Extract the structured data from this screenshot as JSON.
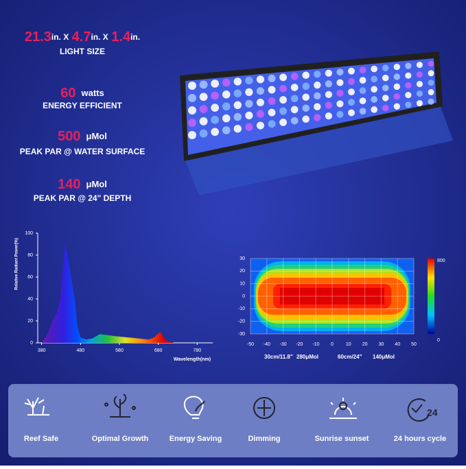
{
  "specs": [
    {
      "parts": [
        {
          "value": 21.3
        },
        {
          "unit": "in. X"
        },
        {
          "value": 4.7
        },
        {
          "unit": "in. X"
        },
        {
          "value": 1.4
        },
        {
          "unit": "in."
        }
      ],
      "label": "LIGHT SIZE"
    },
    {
      "value": 60,
      "unit": "watts",
      "label": "ENERGY EFFICIENT"
    },
    {
      "value": 500,
      "unit": "μMol",
      "label": "PEAK PAR @ WATER SURFACE"
    },
    {
      "value": 140,
      "unit": "μMol",
      "label": "PEAK PAR @ 24\" DEPTH"
    }
  ],
  "spectrum": {
    "y_label": "Relative Radiant Power(%)",
    "x_label": "Wavelength(nm)",
    "x": [
      380,
      395,
      410,
      420,
      428,
      435,
      440,
      446,
      452,
      458,
      465,
      472,
      480,
      495,
      510,
      530,
      550,
      570,
      600,
      630,
      655,
      670,
      678,
      685,
      692,
      700,
      720
    ],
    "values": [
      0,
      8,
      22,
      28,
      40,
      70,
      90,
      80,
      68,
      55,
      40,
      15,
      5,
      3,
      4,
      8,
      7,
      6,
      5,
      4,
      3,
      5,
      8,
      10,
      6,
      2,
      0
    ],
    "xlim": [
      370,
      820
    ],
    "ylim": [
      0,
      100
    ],
    "xticks": [
      380,
      480,
      580,
      680,
      780
    ],
    "yticks": [
      0,
      20,
      40,
      60,
      80,
      100
    ]
  },
  "par_map": {
    "xlim": [
      -50,
      50
    ],
    "ylim": [
      -30,
      30
    ],
    "xticks": [
      -50,
      -40,
      -30,
      -20,
      -10,
      0,
      10,
      20,
      30,
      40,
      50
    ],
    "yticks": [
      -30,
      -20,
      -10,
      0,
      10,
      20,
      30
    ],
    "colorbar": [
      0,
      800
    ],
    "captions": [
      "30cm/11.8\"",
      "280μMol",
      "60cm/24\"",
      "140μMol"
    ]
  },
  "features": [
    "Reef Safe",
    "Optimal Growth",
    "Energy Saving",
    "Dimming",
    "Sunrise sunset",
    "24 hours cycle"
  ]
}
